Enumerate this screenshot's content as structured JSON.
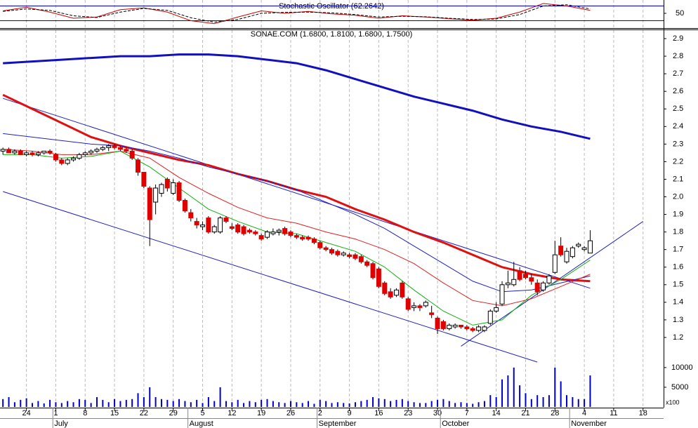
{
  "chart_data": [
    {
      "type": "line",
      "title": "Stochastic Oscillator (62.2642)",
      "ylim": [
        0,
        100
      ],
      "yticks": [
        50
      ],
      "levels": [
        20,
        80
      ],
      "level_color": "#0000cc",
      "x": [
        0,
        4,
        8,
        12,
        16,
        20,
        24,
        28,
        32,
        36,
        40,
        44,
        48,
        52,
        56,
        60,
        64,
        68,
        72,
        76,
        80,
        84,
        88,
        92,
        96,
        100
      ],
      "series": [
        {
          "color": "#cc0000",
          "dashed": false,
          "values": [
            60,
            75,
            55,
            30,
            35,
            65,
            72,
            55,
            20,
            8,
            35,
            60,
            50,
            58,
            48,
            42,
            30,
            40,
            35,
            28,
            22,
            30,
            55,
            90,
            80,
            62.26
          ]
        },
        {
          "color": "#000000",
          "dashed": true,
          "values": [
            58,
            68,
            62,
            40,
            33,
            55,
            70,
            62,
            32,
            14,
            25,
            50,
            54,
            55,
            52,
            45,
            35,
            38,
            36,
            30,
            25,
            27,
            45,
            80,
            85,
            68
          ]
        }
      ]
    },
    {
      "type": "candlestick",
      "title": "SONAE.COM (1.6800, 1.8100, 1.6800, 1.7500)",
      "ylim": [
        1.1,
        2.95
      ],
      "yticks": [
        1.2,
        1.3,
        1.4,
        1.5,
        1.6,
        1.7,
        1.8,
        1.9,
        {
          "value": 2,
          "label": "2.0"
        },
        2.1,
        2.2,
        2.3,
        2.4,
        2.5,
        2.6,
        2.7,
        2.8,
        2.9
      ],
      "up_color": "#ffffff",
      "down_color": "#e00000",
      "open": [
        2.26,
        2.27,
        2.25,
        2.26,
        2.24,
        2.25,
        2.24,
        2.25,
        2.26,
        2.24,
        2.21,
        2.19,
        2.21,
        2.22,
        2.24,
        2.25,
        2.26,
        2.27,
        2.28,
        2.29,
        2.28,
        2.27,
        2.26,
        2.21,
        2.14,
        2.05,
        1.97,
        2.02,
        2.1,
        2.02,
        2.08,
        1.98,
        1.91,
        1.86,
        1.83,
        1.88,
        1.8,
        1.8,
        1.88,
        1.83,
        1.84,
        1.83,
        1.81,
        1.8,
        1.78,
        1.77,
        1.79,
        1.8,
        1.82,
        1.8,
        1.78,
        1.77,
        1.77,
        1.76,
        1.74,
        1.71,
        1.7,
        1.69,
        1.67,
        1.67,
        1.67,
        1.66,
        1.63,
        1.62,
        1.59,
        1.51,
        1.46,
        1.44,
        1.51,
        1.42,
        1.37,
        1.38,
        1.38,
        1.34,
        1.31,
        1.29,
        1.25,
        1.26,
        1.27,
        1.26,
        1.25,
        1.24,
        1.24,
        1.28,
        1.35,
        1.39,
        1.5,
        1.5,
        1.58,
        1.56,
        1.54,
        1.51,
        1.47,
        1.51,
        1.57,
        1.72,
        1.63,
        1.66,
        1.72,
        1.7,
        1.68,
        null,
        null,
        null,
        null,
        null,
        null,
        null,
        null,
        null,
        null,
        null,
        null
      ],
      "high": [
        2.28,
        2.28,
        2.27,
        2.27,
        2.26,
        2.26,
        2.26,
        2.26,
        2.27,
        2.25,
        2.22,
        2.22,
        2.23,
        2.25,
        2.26,
        2.27,
        2.28,
        2.29,
        2.3,
        2.3,
        2.29,
        2.28,
        2.27,
        2.22,
        2.14,
        2.06,
        2.07,
        2.08,
        2.11,
        2.1,
        2.09,
        1.99,
        1.93,
        1.88,
        1.86,
        1.89,
        1.84,
        1.89,
        1.89,
        1.85,
        1.85,
        1.84,
        1.82,
        1.81,
        1.79,
        1.81,
        1.82,
        1.82,
        1.83,
        1.81,
        1.79,
        1.78,
        1.78,
        1.77,
        1.75,
        1.72,
        1.71,
        1.7,
        1.69,
        1.68,
        1.68,
        1.67,
        1.64,
        1.63,
        1.6,
        1.52,
        1.48,
        1.48,
        1.52,
        1.43,
        1.4,
        1.39,
        1.41,
        1.38,
        1.32,
        1.3,
        1.28,
        1.28,
        1.27,
        1.27,
        1.26,
        1.27,
        1.27,
        1.36,
        1.4,
        1.52,
        1.58,
        1.63,
        1.6,
        1.58,
        1.56,
        1.53,
        1.52,
        1.56,
        1.75,
        1.77,
        1.71,
        1.72,
        1.74,
        1.72,
        1.81,
        null,
        null,
        null,
        null,
        null,
        null,
        null,
        null,
        null,
        null,
        null,
        null
      ],
      "low": [
        2.24,
        2.25,
        2.24,
        2.24,
        2.23,
        2.23,
        2.23,
        2.24,
        2.24,
        2.2,
        2.18,
        2.18,
        2.2,
        2.21,
        2.23,
        2.24,
        2.25,
        2.26,
        2.26,
        2.27,
        2.26,
        2.25,
        2.21,
        2.12,
        2.05,
        1.72,
        1.9,
        2.0,
        2.03,
        2.01,
        1.97,
        1.91,
        1.86,
        1.82,
        1.81,
        1.79,
        1.79,
        1.79,
        1.85,
        1.81,
        1.79,
        1.78,
        1.79,
        1.78,
        1.75,
        1.76,
        1.78,
        1.78,
        1.78,
        1.77,
        1.76,
        1.75,
        1.75,
        1.73,
        1.7,
        1.69,
        1.67,
        1.66,
        1.66,
        1.65,
        1.64,
        1.62,
        1.6,
        1.53,
        1.48,
        1.44,
        1.42,
        1.43,
        1.42,
        1.35,
        1.35,
        1.35,
        1.37,
        1.31,
        1.22,
        1.24,
        1.24,
        1.25,
        1.25,
        1.24,
        1.23,
        1.23,
        1.23,
        1.27,
        1.34,
        1.38,
        1.48,
        1.49,
        1.52,
        1.53,
        1.5,
        1.44,
        1.46,
        1.5,
        1.56,
        1.66,
        1.62,
        1.65,
        1.71,
        1.69,
        1.68,
        null,
        null,
        null,
        null,
        null,
        null,
        null,
        null,
        null,
        null,
        null,
        null
      ],
      "close": [
        2.27,
        2.25,
        2.26,
        2.24,
        2.25,
        2.24,
        2.25,
        2.26,
        2.25,
        2.21,
        2.19,
        2.21,
        2.22,
        2.24,
        2.25,
        2.26,
        2.27,
        2.28,
        2.29,
        2.28,
        2.27,
        2.26,
        2.22,
        2.14,
        2.06,
        1.87,
        2.05,
        2.07,
        2.05,
        2.08,
        1.98,
        1.92,
        1.88,
        1.84,
        1.84,
        1.8,
        1.83,
        1.88,
        1.86,
        1.82,
        1.8,
        1.79,
        1.8,
        1.79,
        1.76,
        1.8,
        1.8,
        1.81,
        1.79,
        1.78,
        1.77,
        1.76,
        1.76,
        1.74,
        1.71,
        1.7,
        1.68,
        1.67,
        1.68,
        1.66,
        1.65,
        1.63,
        1.61,
        1.54,
        1.49,
        1.45,
        1.43,
        1.47,
        1.43,
        1.36,
        1.38,
        1.37,
        1.4,
        1.33,
        1.25,
        1.25,
        1.27,
        1.27,
        1.26,
        1.25,
        1.24,
        1.26,
        1.26,
        1.35,
        1.37,
        1.5,
        1.51,
        1.53,
        1.53,
        1.54,
        1.52,
        1.46,
        1.51,
        1.55,
        1.67,
        1.67,
        1.69,
        1.71,
        1.73,
        1.71,
        1.75,
        null,
        null,
        null,
        null,
        null,
        null,
        null,
        null,
        null,
        null,
        null,
        null
      ],
      "overlays": [
        {
          "color": "#1010c0",
          "width": 3,
          "x": [
            0,
            5,
            10,
            15,
            20,
            25,
            30,
            35,
            40,
            45,
            50,
            55,
            60,
            65,
            70,
            75,
            80,
            85,
            90,
            95,
            100
          ],
          "values": [
            2.76,
            2.77,
            2.78,
            2.79,
            2.8,
            2.8,
            2.81,
            2.81,
            2.8,
            2.78,
            2.76,
            2.72,
            2.67,
            2.62,
            2.57,
            2.53,
            2.49,
            2.44,
            2.4,
            2.37,
            2.33
          ]
        },
        {
          "color": "#e01010",
          "width": 3,
          "x": [
            0,
            5,
            10,
            15,
            20,
            25,
            30,
            35,
            40,
            45,
            50,
            55,
            60,
            65,
            70,
            75,
            80,
            85,
            90,
            95,
            100
          ],
          "values": [
            2.58,
            2.5,
            2.42,
            2.34,
            2.29,
            2.25,
            2.21,
            2.18,
            2.13,
            2.09,
            2.04,
            2.0,
            1.93,
            1.87,
            1.8,
            1.74,
            1.67,
            1.6,
            1.56,
            1.53,
            1.52
          ]
        },
        {
          "color": "#2020c0",
          "width": 1,
          "x": [
            0,
            5,
            10,
            15,
            20,
            25,
            30,
            35,
            40,
            45,
            50,
            55,
            60,
            65,
            70,
            75,
            80,
            85,
            90,
            95,
            100
          ],
          "values": [
            2.36,
            2.34,
            2.32,
            2.3,
            2.29,
            2.26,
            2.22,
            2.17,
            2.13,
            2.09,
            2.04,
            1.97,
            1.9,
            1.82,
            1.72,
            1.62,
            1.52,
            1.46,
            1.47,
            1.51,
            1.55
          ]
        },
        {
          "color": "#e02020",
          "width": 1,
          "x": [
            0,
            5,
            10,
            15,
            20,
            25,
            30,
            35,
            40,
            45,
            50,
            55,
            60,
            65,
            70,
            75,
            80,
            85,
            90,
            95,
            100
          ],
          "values": [
            2.27,
            2.26,
            2.24,
            2.24,
            2.26,
            2.22,
            2.11,
            2.02,
            1.94,
            1.88,
            1.85,
            1.8,
            1.76,
            1.7,
            1.62,
            1.51,
            1.41,
            1.38,
            1.42,
            1.49,
            1.56
          ]
        },
        {
          "color": "#10b010",
          "width": 1,
          "x": [
            0,
            5,
            10,
            15,
            20,
            25,
            30,
            35,
            40,
            45,
            50,
            55,
            60,
            65,
            70,
            75,
            80,
            85,
            90,
            95,
            100
          ],
          "values": [
            2.24,
            2.24,
            2.22,
            2.23,
            2.26,
            2.17,
            2.05,
            1.93,
            1.86,
            1.8,
            1.79,
            1.74,
            1.69,
            1.6,
            1.47,
            1.35,
            1.27,
            1.3,
            1.44,
            1.53,
            1.64
          ]
        }
      ],
      "trendlines": [
        {
          "color": "#2020c0",
          "from": [
            0,
            2.56
          ],
          "to": [
            100,
            1.48
          ]
        },
        {
          "color": "#2020c0",
          "from": [
            0,
            2.03
          ],
          "to": [
            91,
            1.06
          ]
        },
        {
          "color": "#2020c0",
          "from": [
            78,
            1.15
          ],
          "to": [
            109,
            1.86
          ]
        }
      ]
    },
    {
      "type": "bar",
      "color": "#0000cc",
      "ylim": [
        0,
        13000
      ],
      "yticks": [
        5000,
        10000
      ],
      "unit_label": "x100",
      "categories": [
        null,
        null,
        null,
        null,
        "24",
        null,
        null,
        null,
        null,
        "1",
        null,
        null,
        null,
        null,
        "8",
        null,
        null,
        null,
        null,
        "15",
        null,
        null,
        null,
        null,
        "22",
        null,
        null,
        null,
        null,
        "29",
        null,
        null,
        null,
        null,
        "5",
        null,
        null,
        null,
        null,
        "12",
        null,
        null,
        null,
        null,
        "19",
        null,
        null,
        null,
        null,
        "26",
        null,
        null,
        null,
        null,
        "2",
        null,
        null,
        null,
        null,
        "9",
        null,
        null,
        null,
        null,
        "16",
        null,
        null,
        null,
        null,
        "23",
        null,
        null,
        null,
        null,
        "30",
        null,
        null,
        null,
        null,
        "7",
        null,
        null,
        null,
        null,
        "14",
        null,
        null,
        null,
        null,
        "21",
        null,
        null,
        null,
        null,
        "28",
        null,
        null,
        null,
        null,
        "4",
        null,
        null,
        null,
        null,
        "11",
        null,
        null,
        null,
        null,
        "18",
        null,
        null,
        null
      ],
      "month_labels": [
        null,
        null,
        null,
        null,
        null,
        null,
        null,
        null,
        null,
        "July",
        null,
        null,
        null,
        null,
        null,
        null,
        null,
        null,
        null,
        null,
        null,
        null,
        null,
        null,
        null,
        null,
        null,
        null,
        null,
        null,
        null,
        null,
        "August",
        null,
        null,
        null,
        null,
        null,
        null,
        null,
        null,
        null,
        null,
        null,
        null,
        null,
        null,
        null,
        null,
        null,
        null,
        null,
        null,
        null,
        "September",
        null,
        null,
        null,
        null,
        null,
        null,
        null,
        null,
        null,
        null,
        null,
        null,
        null,
        null,
        null,
        null,
        null,
        null,
        null,
        null,
        "October",
        null,
        null,
        null,
        null,
        null,
        null,
        null,
        null,
        null,
        null,
        null,
        null,
        null,
        null,
        null,
        null,
        null,
        null,
        null,
        null,
        null,
        "November",
        null,
        null,
        null,
        null,
        null,
        null,
        null,
        null,
        null,
        null,
        null,
        null,
        null,
        null,
        null
      ],
      "values": [
        2000,
        2500,
        1200,
        1800,
        2200,
        1000,
        1500,
        900,
        1800,
        1200,
        1000,
        1500,
        1200,
        2000,
        1800,
        1000,
        2500,
        1800,
        1200,
        2000,
        1500,
        1800,
        2000,
        3500,
        2500,
        5000,
        2500,
        2000,
        1800,
        1500,
        2000,
        1500,
        1200,
        1800,
        1000,
        2500,
        1500,
        5000,
        1500,
        1200,
        1800,
        1000,
        1500,
        1200,
        1800,
        2000,
        1500,
        1200,
        1000,
        1500,
        1200,
        1000,
        1500,
        800,
        1800,
        1500,
        1000,
        1200,
        1000,
        900,
        1200,
        1500,
        1800,
        2500,
        2200,
        2000,
        1500,
        1800,
        2000,
        1500,
        1200,
        1000,
        1000,
        1500,
        1800,
        2000,
        1500,
        1000,
        1200,
        1000,
        800,
        1200,
        1500,
        3000,
        2500,
        7000,
        8000,
        10000,
        5500,
        3500,
        2000,
        3000,
        2500,
        3000,
        10000,
        6500,
        3000,
        2500,
        2000,
        2000,
        8000,
        null,
        null,
        null,
        null,
        null,
        null,
        null,
        null,
        null,
        null,
        null,
        null
      ]
    }
  ]
}
